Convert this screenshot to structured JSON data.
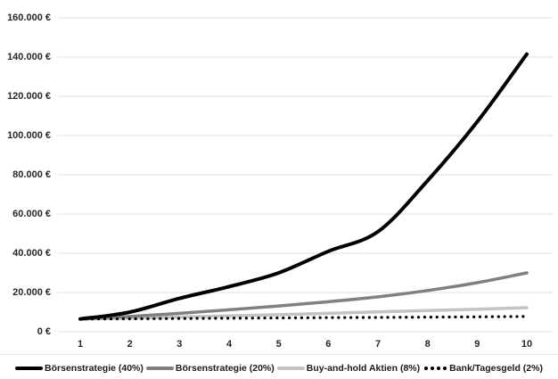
{
  "chart_data": {
    "type": "line",
    "title": "",
    "xlabel": "",
    "ylabel": "",
    "x_tick_labels": [
      "1",
      "2",
      "3",
      "4",
      "5",
      "6",
      "7",
      "8",
      "9",
      "10"
    ],
    "y_axis": {
      "min": 0,
      "max": 160000,
      "step": 20000,
      "tick_labels": [
        "0 €",
        "20.000 €",
        "40.000 €",
        "60.000 €",
        "80.000 €",
        "100.000 €",
        "120.000 €",
        "140.000 €",
        "160.000 €"
      ]
    },
    "grid": "horizontal",
    "legend_position": "bottom",
    "series": [
      {
        "name": "Börsenstrategie (40%)",
        "color": "#000000",
        "style": "solid",
        "width": 4,
        "values": [
          6500,
          10000,
          17000,
          23000,
          30000,
          41000,
          51000,
          77000,
          107000,
          141500
        ]
      },
      {
        "name": "Börsenstrategie (20%)",
        "color": "#808080",
        "style": "solid",
        "width": 3.5,
        "values": [
          6500,
          7800,
          9400,
          11200,
          13100,
          15300,
          17800,
          21000,
          25000,
          30000
        ]
      },
      {
        "name": "Buy-and-hold Aktien (8%)",
        "color": "#c3c3c3",
        "style": "solid",
        "width": 3.5,
        "values": [
          6500,
          7000,
          7500,
          8100,
          8700,
          9400,
          10100,
          10800,
          11500,
          12300
        ]
      },
      {
        "name": "Bank/Tagesgeld (2%)",
        "color": "#000000",
        "style": "dotted",
        "width": 3.2,
        "values": [
          6500,
          6600,
          6750,
          6900,
          7050,
          7200,
          7300,
          7450,
          7600,
          7800
        ]
      }
    ]
  },
  "colors": {
    "gridline": "#dcdcdc",
    "axis_text": "#262626",
    "background": "#ffffff"
  }
}
